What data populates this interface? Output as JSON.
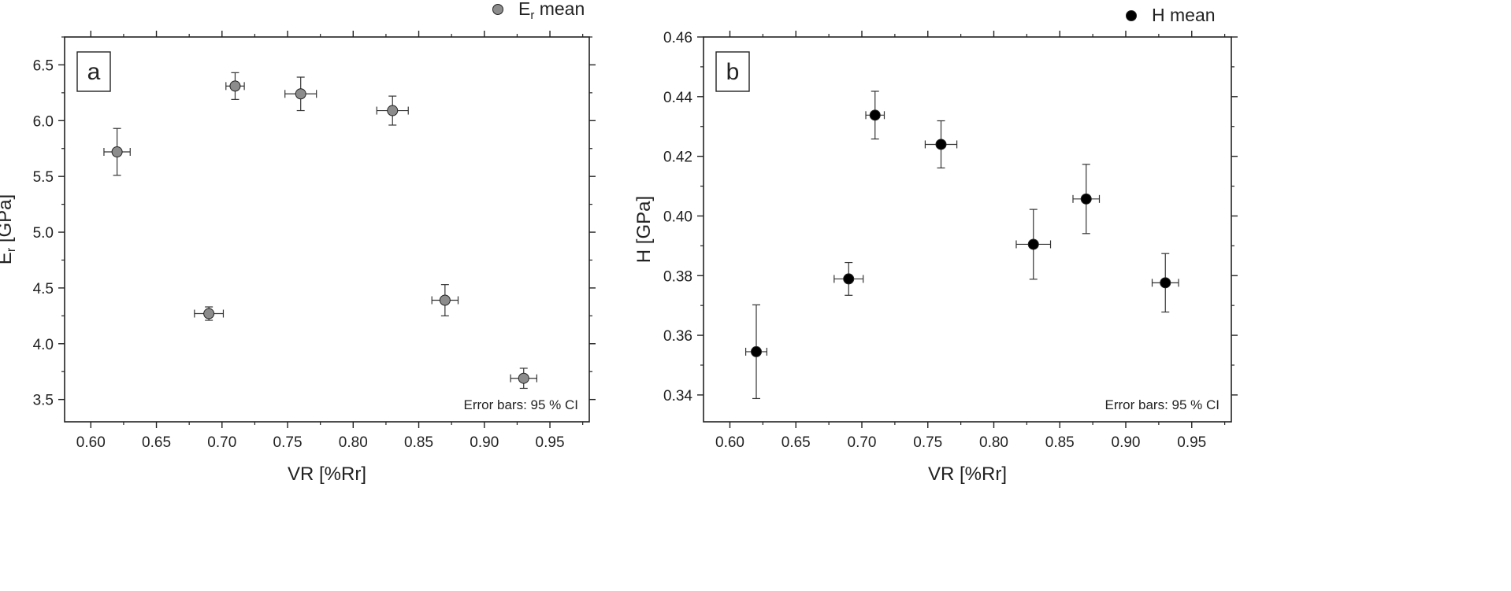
{
  "chart_data": [
    {
      "type": "scatter",
      "panel_label": "a",
      "xlabel": "VR [%Rr]",
      "ylabel_main": "E",
      "ylabel_sub": "r",
      "ylabel_rest": " [GPa]",
      "xlim": [
        0.58,
        0.98
      ],
      "ylim": [
        3.3,
        6.75
      ],
      "xticks": [
        "0.60",
        "0.65",
        "0.70",
        "0.75",
        "0.80",
        "0.85",
        "0.90",
        "0.95"
      ],
      "yticks": [
        "3.5",
        "4.0",
        "4.5",
        "5.0",
        "5.5",
        "6.0",
        "6.5"
      ],
      "legend_main": "E",
      "legend_sub": "r",
      "legend_rest": " mean",
      "marker_color": "#8c8c8c",
      "note": "Error bars: 95 % CI",
      "points": [
        {
          "x": 0.62,
          "y": 5.72,
          "y_err": 0.21,
          "x_err": 0.01
        },
        {
          "x": 0.69,
          "y": 4.27,
          "y_err": 0.06,
          "x_err": 0.011
        },
        {
          "x": 0.71,
          "y": 6.31,
          "y_err": 0.12,
          "x_err": 0.007
        },
        {
          "x": 0.76,
          "y": 6.24,
          "y_err": 0.15,
          "x_err": 0.012
        },
        {
          "x": 0.83,
          "y": 6.09,
          "y_err": 0.13,
          "x_err": 0.012
        },
        {
          "x": 0.87,
          "y": 4.39,
          "y_err": 0.14,
          "x_err": 0.01
        },
        {
          "x": 0.93,
          "y": 3.69,
          "y_err": 0.09,
          "x_err": 0.01
        }
      ]
    },
    {
      "type": "scatter",
      "panel_label": "b",
      "xlabel": "VR [%Rr]",
      "ylabel_main": "H [GPa]",
      "ylabel_sub": "",
      "ylabel_rest": "",
      "xlim": [
        0.58,
        0.98
      ],
      "ylim": [
        0.331,
        0.46
      ],
      "xticks": [
        "0.60",
        "0.65",
        "0.70",
        "0.75",
        "0.80",
        "0.85",
        "0.90",
        "0.95"
      ],
      "yticks": [
        "0.34",
        "0.36",
        "0.38",
        "0.40",
        "0.42",
        "0.44",
        "0.46"
      ],
      "legend_main": "H mean",
      "legend_sub": "",
      "legend_rest": "",
      "marker_color": "#000000",
      "note": "Error bars: 95 % CI",
      "points": [
        {
          "x": 0.62,
          "y": 0.3545,
          "y_err": 0.0157,
          "x_err": 0.008
        },
        {
          "x": 0.69,
          "y": 0.3789,
          "y_err": 0.0055,
          "x_err": 0.011
        },
        {
          "x": 0.71,
          "y": 0.4338,
          "y_err": 0.008,
          "x_err": 0.007
        },
        {
          "x": 0.76,
          "y": 0.424,
          "y_err": 0.0079,
          "x_err": 0.012
        },
        {
          "x": 0.83,
          "y": 0.3905,
          "y_err": 0.0117,
          "x_err": 0.013
        },
        {
          "x": 0.87,
          "y": 0.4057,
          "y_err": 0.0116,
          "x_err": 0.01
        },
        {
          "x": 0.93,
          "y": 0.3776,
          "y_err": 0.0098,
          "x_err": 0.01
        }
      ]
    }
  ]
}
